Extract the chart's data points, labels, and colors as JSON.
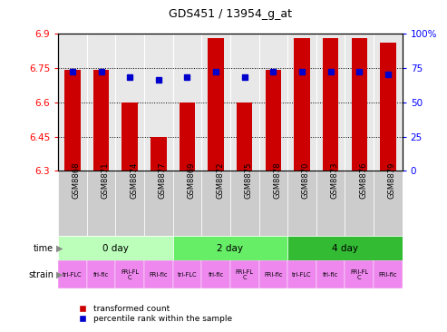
{
  "title": "GDS451 / 13954_g_at",
  "samples": [
    "GSM8868",
    "GSM8871",
    "GSM8874",
    "GSM8877",
    "GSM8869",
    "GSM8872",
    "GSM8875",
    "GSM8878",
    "GSM8870",
    "GSM8873",
    "GSM8876",
    "GSM8879"
  ],
  "red_values": [
    6.74,
    6.74,
    6.6,
    6.45,
    6.6,
    6.88,
    6.6,
    6.74,
    6.88,
    6.88,
    6.88,
    6.86
  ],
  "blue_values": [
    72,
    72,
    68,
    66,
    68,
    72,
    68,
    72,
    72,
    72,
    72,
    70
  ],
  "ylim_left": [
    6.3,
    6.9
  ],
  "ylim_right": [
    0,
    100
  ],
  "yticks_left": [
    6.3,
    6.45,
    6.6,
    6.75,
    6.9
  ],
  "yticks_right": [
    0,
    25,
    50,
    75,
    100
  ],
  "ytick_labels_left": [
    "6.3",
    "6.45",
    "6.6",
    "6.75",
    "6.9"
  ],
  "ytick_labels_right": [
    "0",
    "25",
    "50",
    "75",
    "100%"
  ],
  "hlines": [
    6.45,
    6.6,
    6.75
  ],
  "bar_color": "#cc0000",
  "dot_color": "#0000cc",
  "bar_bottom": 6.3,
  "time_groups": [
    {
      "label": "0 day",
      "start": 0,
      "end": 4,
      "color": "#bbffbb"
    },
    {
      "label": "2 day",
      "start": 4,
      "end": 8,
      "color": "#66ee66"
    },
    {
      "label": "4 day",
      "start": 8,
      "end": 12,
      "color": "#33bb33"
    }
  ],
  "strain_labels": [
    "tri-FLC",
    "fri-flc",
    "FRI-FLC",
    "FRI-flc",
    "tri-FLC",
    "fri-flc",
    "FRI-FLC",
    "FRI-flc",
    "tri-FLC",
    "fri-flc",
    "FRI-FLC",
    "FRI-flc"
  ],
  "legend_red": "transformed count",
  "legend_blue": "percentile rank within the sample",
  "bg_color": "#ffffff",
  "plot_bg_color": "#e8e8e8",
  "sample_bg_color": "#cccccc",
  "strain_color": "#ee88ee",
  "time_label_color": "#888888",
  "bar_width": 0.55
}
